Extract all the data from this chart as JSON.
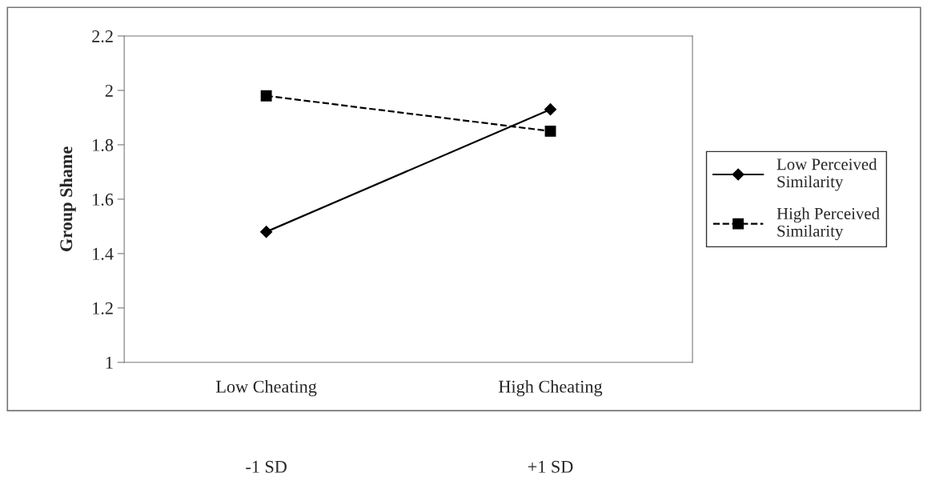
{
  "chart_data": {
    "type": "line",
    "ylabel": "Group Shame",
    "categories": [
      "Low Cheating",
      "High Cheating"
    ],
    "series": [
      {
        "name": "Low Perceived Similarity",
        "color": "#000000",
        "values": [
          1.48,
          1.93
        ],
        "marker": "diamond",
        "line_style": "solid"
      },
      {
        "name": "High Perceived Similarity",
        "color": "#000000",
        "values": [
          1.98,
          1.85
        ],
        "marker": "square",
        "line_style": "dashed"
      }
    ],
    "ylim": [
      1,
      2.2
    ],
    "yticks": [
      1,
      1.2,
      1.4,
      1.6,
      1.8,
      2,
      2.2
    ],
    "grid": false,
    "legend": "right",
    "annotations": [
      "-1 SD",
      "+1 SD"
    ]
  }
}
